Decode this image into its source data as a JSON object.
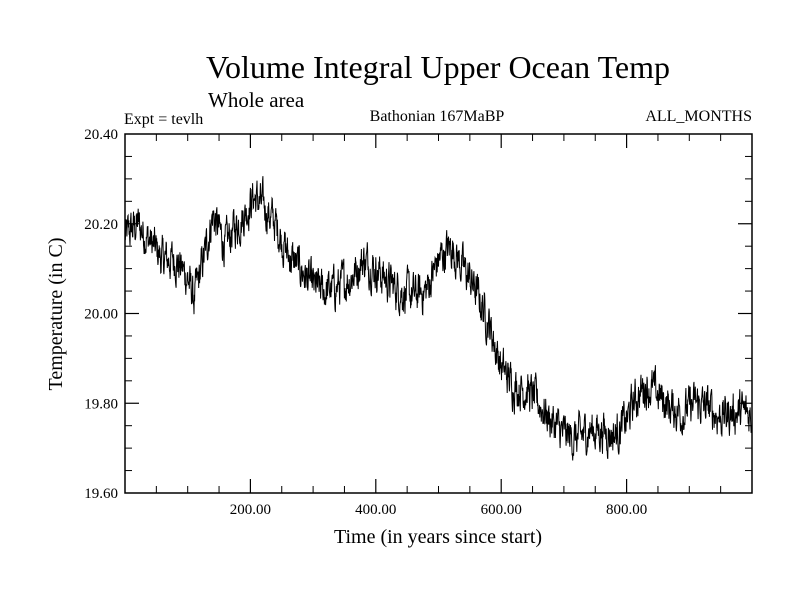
{
  "chart_data": {
    "type": "line",
    "title": "Volume Integral Upper Ocean Temp",
    "subtitle": "Whole area",
    "annotations": {
      "left": "Expt = tevlh",
      "center": "Bathonian 167MaBP",
      "right": "ALL_MONTHS"
    },
    "xlabel": "Time (in years since start)",
    "ylabel": "Temperature (in C)",
    "xlim": [
      0,
      1000
    ],
    "ylim": [
      19.6,
      20.4
    ],
    "xticks": [
      200,
      400,
      600,
      800
    ],
    "xtick_labels": [
      "200.00",
      "400.00",
      "600.00",
      "800.00"
    ],
    "yticks": [
      19.6,
      19.8,
      20.0,
      20.2,
      20.4
    ],
    "ytick_labels": [
      "19.60",
      "19.80",
      "20.00",
      "20.20",
      "20.40"
    ],
    "grid": false,
    "colors": {
      "line": "#000000",
      "axes": "#000000",
      "background": "#ffffff"
    },
    "series": [
      {
        "name": "temperature",
        "noise_amplitude": 0.035,
        "x": [
          0,
          20,
          40,
          60,
          80,
          100,
          110,
          130,
          140,
          160,
          170,
          190,
          205,
          220,
          240,
          260,
          280,
          300,
          320,
          340,
          360,
          380,
          400,
          420,
          440,
          460,
          480,
          500,
          520,
          540,
          560,
          580,
          600,
          620,
          640,
          660,
          680,
          700,
          720,
          740,
          760,
          780,
          800,
          810,
          830,
          850,
          870,
          890,
          910,
          930,
          950,
          970,
          990,
          1000
        ],
        "values": [
          20.17,
          20.2,
          20.16,
          20.12,
          20.12,
          20.08,
          20.03,
          20.15,
          20.22,
          20.15,
          20.18,
          20.22,
          20.26,
          20.24,
          20.2,
          20.13,
          20.1,
          20.06,
          20.05,
          20.06,
          20.08,
          20.12,
          20.1,
          20.07,
          20.05,
          20.04,
          20.05,
          20.12,
          20.15,
          20.1,
          20.05,
          19.98,
          19.88,
          19.84,
          19.83,
          19.8,
          19.76,
          19.73,
          19.72,
          19.74,
          19.74,
          19.73,
          19.76,
          19.8,
          19.84,
          19.82,
          19.79,
          19.78,
          19.8,
          19.79,
          19.77,
          19.78,
          19.78,
          19.77
        ]
      }
    ]
  }
}
